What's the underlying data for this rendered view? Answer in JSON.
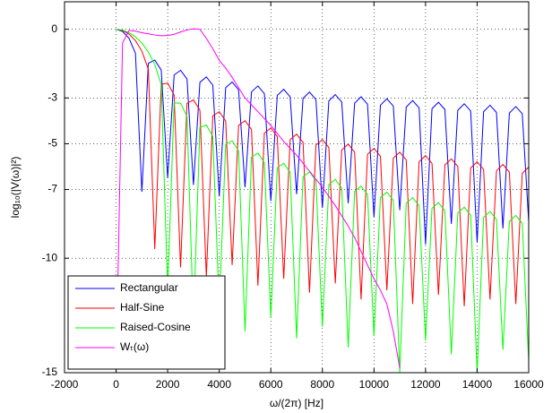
{
  "chart_data": {
    "type": "line",
    "xlabel": "ω/(2π) [Hz]",
    "ylabel": "log₁₀(|V(ω)|²)",
    "xlim": [
      -2000,
      16000
    ],
    "ylim": [
      -15,
      1.2
    ],
    "xticks": [
      -2000,
      0,
      2000,
      4000,
      6000,
      8000,
      10000,
      12000,
      14000,
      16000
    ],
    "yticks": [
      -15,
      -10,
      -7,
      -5,
      -3,
      0
    ],
    "grid": true,
    "legend": "lower left",
    "x": [
      0,
      250,
      500,
      750,
      1000,
      1250,
      1500,
      1750,
      2000,
      2250,
      2500,
      2750,
      3000,
      3250,
      3500,
      3750,
      4000,
      4250,
      4500,
      4750,
      5000,
      5250,
      5500,
      5750,
      6000,
      6250,
      6500,
      6750,
      7000,
      7250,
      7500,
      7750,
      8000,
      8250,
      8500,
      8750,
      9000,
      9250,
      9500,
      9750,
      10000,
      10250,
      10500,
      10750,
      11000,
      11250,
      11500,
      11750,
      12000,
      12250,
      12500,
      12750,
      13000,
      13250,
      13500,
      13750,
      14000,
      14250,
      14500,
      14750,
      15000,
      15250,
      15500,
      15750,
      16000
    ],
    "series": [
      {
        "name": "Rectangular",
        "color": "#0000ff",
        "values": [
          0,
          -0.091,
          -0.392,
          -1.045,
          -7.1,
          -1.489,
          -1.346,
          -1.781,
          -6.5,
          -1.999,
          -1.79,
          -2.174,
          -6.8,
          -2.319,
          -2.082,
          -2.443,
          -7.3,
          -2.552,
          -2.3,
          -2.648,
          -6.9,
          -2.735,
          -2.475,
          -2.814,
          -7.5,
          -2.887,
          -2.62,
          -2.954,
          -7.2,
          -3.016,
          -2.744,
          -3.074,
          -7.8,
          -3.128,
          -2.853,
          -3.179,
          -7.6,
          -3.227,
          -2.949,
          -3.273,
          -8.2,
          -3.316,
          -3.036,
          -3.358,
          -7.9,
          -3.397,
          -3.115,
          -3.435,
          -9.4,
          -3.471,
          -3.188,
          -3.506,
          -8.5,
          -3.539,
          -3.255,
          -3.572,
          -9.3,
          -3.603,
          -3.317,
          -3.633,
          -8.7,
          -3.662,
          -3.375,
          -3.69,
          -8.4
        ]
      },
      {
        "name": "Half-Sine",
        "color": "#ff0000",
        "values": [
          0,
          -0.051,
          -0.21,
          -0.495,
          -0.954,
          -1.741,
          -9.6,
          -2.403,
          -2.352,
          -2.87,
          -10.4,
          -3.233,
          -3.088,
          -3.532,
          -10.8,
          -3.786,
          -3.599,
          -4.007,
          -10.3,
          -4.202,
          -3.991,
          -4.378,
          -11.2,
          -4.537,
          -4.311,
          -4.683,
          -10.9,
          -4.818,
          -4.58,
          -4.942,
          -11.5,
          -5.059,
          -4.813,
          -5.168,
          -11.1,
          -5.27,
          -5.018,
          -5.367,
          -11.8,
          -5.459,
          -5.202,
          -5.546,
          -11.4,
          -5.629,
          -5.368,
          -5.708,
          -12.0,
          -5.784,
          -5.519,
          -5.856,
          -11.6,
          -5.926,
          -5.659,
          -5.993,
          -12.1,
          -6.057,
          -5.788,
          -6.119,
          -11.8,
          -6.179,
          -5.908,
          -6.237,
          -12.0,
          -6.293,
          -6.02
        ]
      },
      {
        "name": "Raised-Cosine",
        "color": "#00ff00",
        "values": [
          0,
          -0.035,
          -0.142,
          -0.327,
          -0.602,
          -0.99,
          -1.54,
          -2.41,
          -11.4,
          -3.217,
          -3.23,
          -3.808,
          -12.8,
          -4.28,
          -4.185,
          -4.675,
          -12.2,
          -5.016,
          -4.869,
          -5.316,
          -13.2,
          -5.584,
          -5.407,
          -5.826,
          -12.6,
          -6.048,
          -5.851,
          -6.252,
          -13.5,
          -6.44,
          -6.229,
          -6.616,
          -13.0,
          -6.781,
          -6.558,
          -6.936,
          -13.9,
          -7.082,
          -6.851,
          -7.22,
          -13.4,
          -7.351,
          -7.113,
          -7.476,
          -15,
          -7.595,
          -7.352,
          -7.709,
          -13.6,
          -7.818,
          -7.57,
          -7.923,
          -14.2,
          -8.023,
          -7.771,
          -8.12,
          -15,
          -8.214,
          -7.958,
          -8.304,
          -14.0,
          -8.391,
          -8.132,
          -8.475,
          -14.5
        ]
      },
      {
        "name": "Wₜ(ω)",
        "color": "#ff00ff",
        "values": [
          -15,
          -0.6,
          -0.05,
          -0.08,
          -0.15,
          -0.2,
          -0.25,
          -0.28,
          -0.27,
          -0.22,
          -0.12,
          -0.03,
          0.02,
          0,
          -0.4,
          -0.85,
          -1.35,
          -1.7,
          -2.1,
          -2.55,
          -3.0,
          -3.3,
          -3.6,
          -3.9,
          -4.2,
          -4.55,
          -4.9,
          -5.2,
          -5.5,
          -5.85,
          -6.2,
          -6.55,
          -6.9,
          -7.3,
          -7.7,
          -8.15,
          -8.6,
          -9.1,
          -9.7,
          -10.3,
          -10.9,
          -11.4,
          -12.0,
          -13.2,
          -14.8,
          null,
          null,
          null,
          null,
          null,
          null,
          null,
          null,
          null,
          null,
          null,
          null,
          null,
          null,
          null,
          null,
          null,
          null,
          null,
          null
        ]
      }
    ]
  }
}
